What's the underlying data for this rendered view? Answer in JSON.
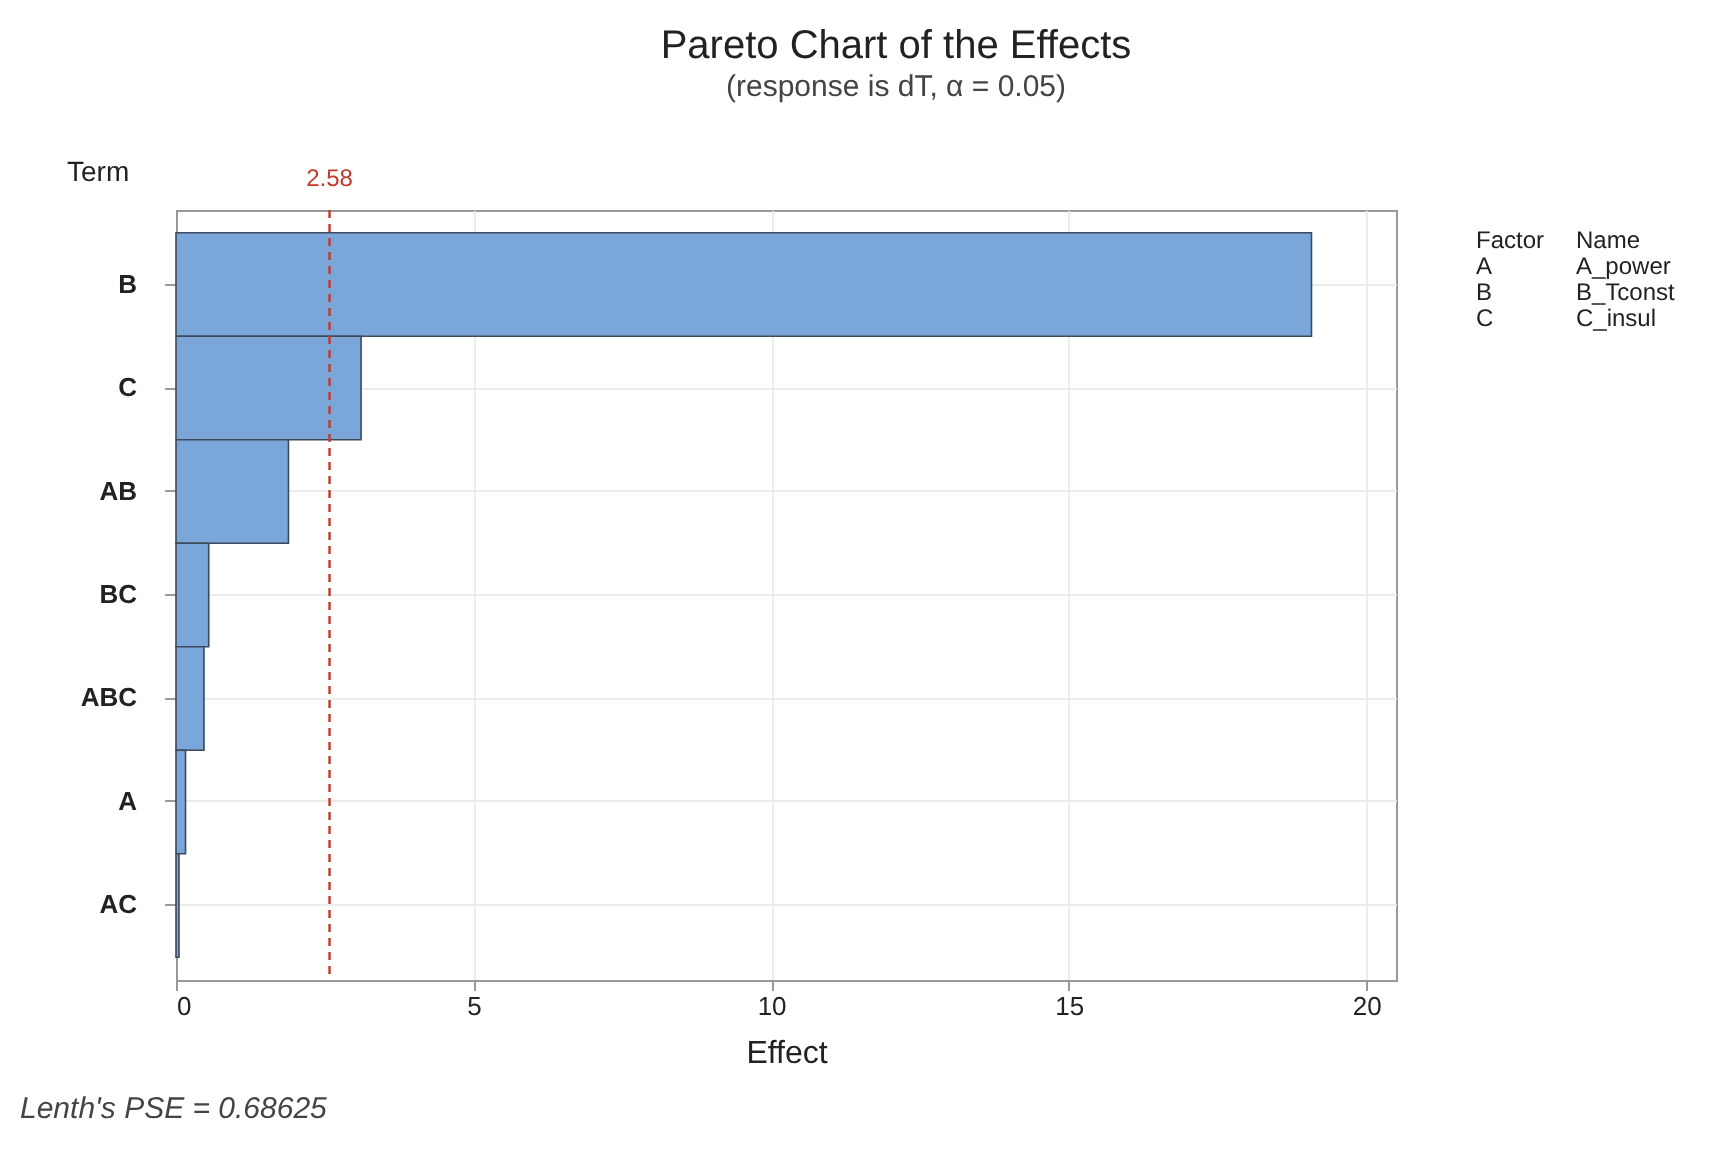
{
  "chart_data": {
    "type": "bar",
    "orientation": "horizontal",
    "title": "Pareto Chart of the Effects",
    "subtitle": "(response is dT, α = 0.05)",
    "xlabel": "Effect",
    "ylabel": "Term",
    "categories": [
      "B",
      "C",
      "AB",
      "BC",
      "ABC",
      "A",
      "AC"
    ],
    "series": [
      {
        "color": "#7aa6d9",
        "values": [
          19.08,
          3.11,
          1.89,
          0.55,
          0.47,
          0.16,
          0.05
        ]
      }
    ],
    "xlim": [
      0,
      20.5
    ],
    "xticks": [
      0,
      5,
      10,
      15,
      20
    ],
    "grid": true,
    "ref_lines": [
      {
        "axis": "x",
        "value": 2.58,
        "label": "2.58",
        "color": "#c0392b",
        "line_style": "dashed"
      }
    ],
    "annotations": [
      "Factor",
      "Name",
      "A",
      "A_power",
      "B",
      "B_Tconst",
      "C",
      "C_insul",
      "Lenth's PSE = 0.68625"
    ]
  }
}
